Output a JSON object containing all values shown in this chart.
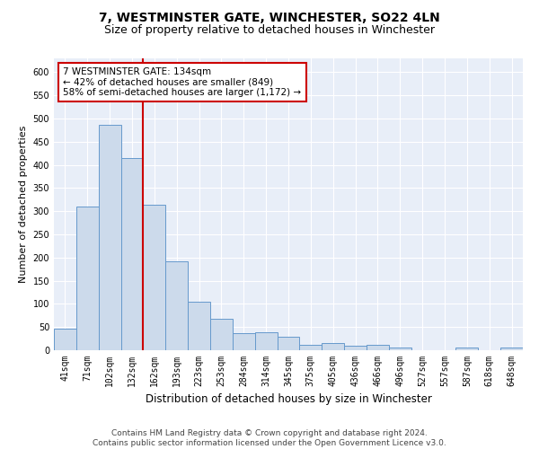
{
  "title": "7, WESTMINSTER GATE, WINCHESTER, SO22 4LN",
  "subtitle": "Size of property relative to detached houses in Winchester",
  "xlabel": "Distribution of detached houses by size in Winchester",
  "ylabel": "Number of detached properties",
  "categories": [
    "41sqm",
    "71sqm",
    "102sqm",
    "132sqm",
    "162sqm",
    "193sqm",
    "223sqm",
    "253sqm",
    "284sqm",
    "314sqm",
    "345sqm",
    "375sqm",
    "405sqm",
    "436sqm",
    "466sqm",
    "496sqm",
    "527sqm",
    "557sqm",
    "587sqm",
    "618sqm",
    "648sqm"
  ],
  "values": [
    46,
    311,
    487,
    415,
    314,
    191,
    104,
    68,
    37,
    38,
    29,
    12,
    15,
    10,
    12,
    5,
    0,
    0,
    5,
    0,
    5
  ],
  "bar_color": "#ccdaeb",
  "bar_edge_color": "#6699cc",
  "reference_line_x": 3.5,
  "annotation_line1": "7 WESTMINSTER GATE: 134sqm",
  "annotation_line2": "← 42% of detached houses are smaller (849)",
  "annotation_line3": "58% of semi-detached houses are larger (1,172) →",
  "annotation_box_color": "#ffffff",
  "annotation_box_edge_color": "#cc0000",
  "ref_line_color": "#cc0000",
  "ylim": [
    0,
    630
  ],
  "yticks": [
    0,
    50,
    100,
    150,
    200,
    250,
    300,
    350,
    400,
    450,
    500,
    550,
    600
  ],
  "bg_color": "#e8eef8",
  "footer1": "Contains HM Land Registry data © Crown copyright and database right 2024.",
  "footer2": "Contains public sector information licensed under the Open Government Licence v3.0.",
  "title_fontsize": 10,
  "subtitle_fontsize": 9,
  "xlabel_fontsize": 8.5,
  "ylabel_fontsize": 8,
  "tick_fontsize": 7,
  "annotation_fontsize": 7.5,
  "footer_fontsize": 6.5
}
